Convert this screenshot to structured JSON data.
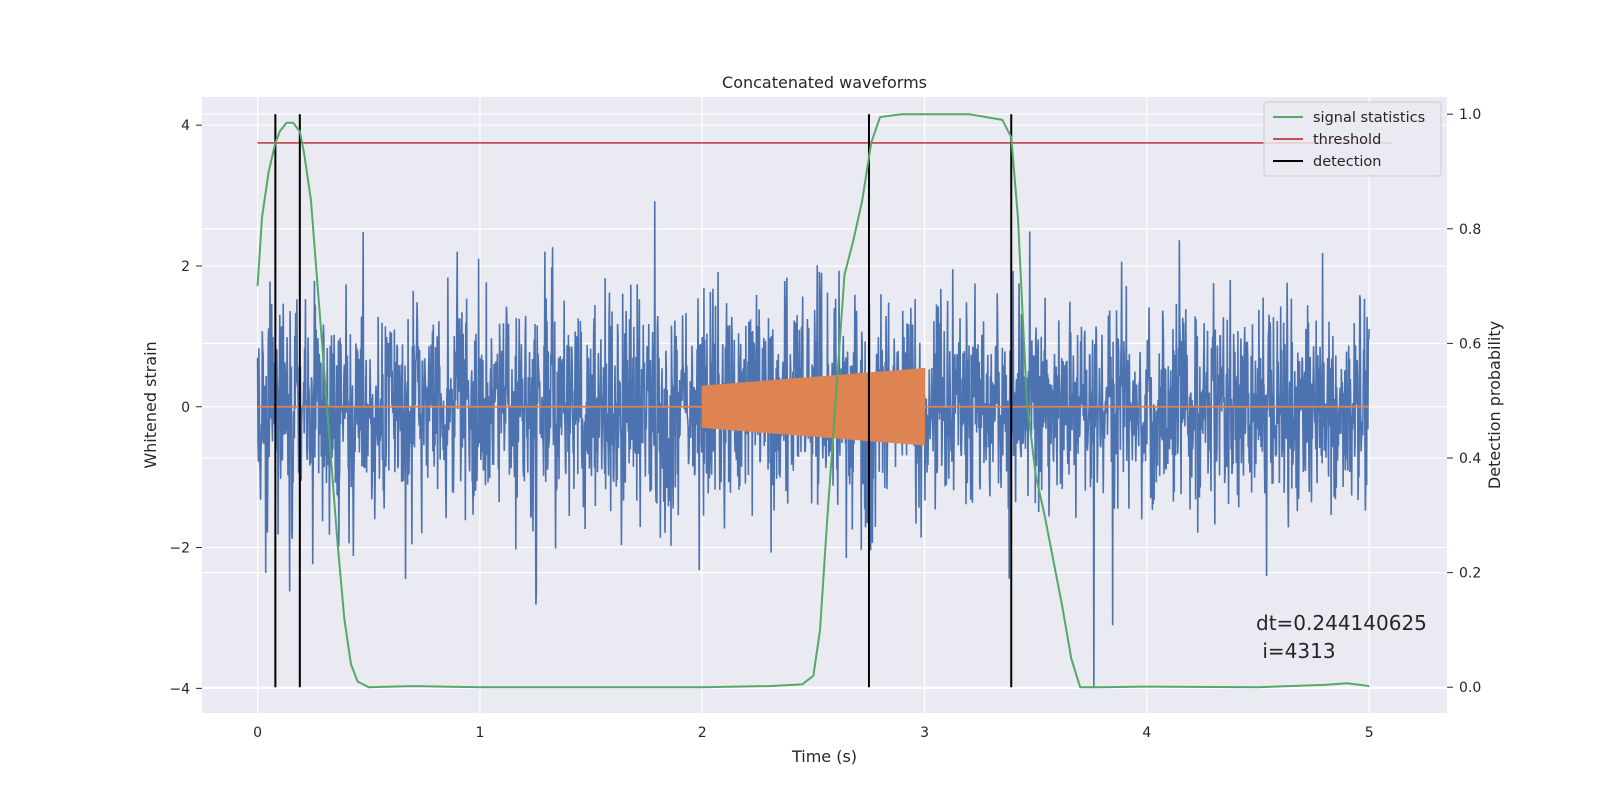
{
  "chart_data": {
    "type": "line",
    "title": "Concatenated waveforms",
    "xlabel": "Time (s)",
    "ylabel": "Whitened strain",
    "y2label": "Detection probability",
    "xlim": [
      -0.25,
      5.35
    ],
    "ylim": [
      -4.35,
      4.4
    ],
    "y2lim": [
      -0.045,
      1.03
    ],
    "xticks": [
      0,
      1,
      2,
      3,
      4,
      5
    ],
    "yticks": [
      -4,
      -2,
      0,
      2,
      4
    ],
    "y2ticks": [
      0.0,
      0.2,
      0.4,
      0.6,
      0.8,
      1.0
    ],
    "xtick_labels": [
      "0",
      "1",
      "2",
      "3",
      "4",
      "5"
    ],
    "ytick_labels": [
      "−4",
      "−2",
      "0",
      "2",
      "4"
    ],
    "y2tick_labels": [
      "0.0",
      "0.2",
      "0.4",
      "0.6",
      "0.8",
      "1.0"
    ],
    "grid": true,
    "legend_position": "top-right",
    "series": [
      {
        "name": "",
        "axis": "left",
        "color": "#4c72b0",
        "kind": "noise",
        "x_range": [
          0,
          5
        ],
        "amplitude_std": 0.75,
        "y_range": [
          -4,
          4
        ]
      },
      {
        "name": "",
        "axis": "left",
        "color": "#dd8452",
        "kind": "chirp",
        "x_range": [
          2,
          3
        ],
        "amplitude_start": 0.3,
        "amplitude_end": 0.55,
        "baseline": 0
      },
      {
        "name": "signal statistics",
        "axis": "right",
        "color": "#55a868",
        "x": [
          0,
          0.02,
          0.05,
          0.08,
          0.1,
          0.13,
          0.16,
          0.19,
          0.21,
          0.24,
          0.27,
          0.3,
          0.33,
          0.36,
          0.39,
          0.42,
          0.45,
          0.5,
          0.7,
          1.0,
          1.5,
          2.0,
          2.3,
          2.45,
          2.5,
          2.53,
          2.56,
          2.6,
          2.64,
          2.68,
          2.72,
          2.76,
          2.8,
          2.9,
          3.0,
          3.2,
          3.35,
          3.39,
          3.42,
          3.46,
          3.5,
          3.54,
          3.58,
          3.62,
          3.66,
          3.7,
          3.8,
          4.0,
          4.5,
          4.8,
          4.9,
          5.0
        ],
        "values": [
          0.7,
          0.82,
          0.9,
          0.95,
          0.97,
          0.985,
          0.985,
          0.97,
          0.93,
          0.85,
          0.7,
          0.55,
          0.4,
          0.25,
          0.12,
          0.04,
          0.01,
          0.0,
          0.002,
          0.0,
          0.0,
          0.0,
          0.002,
          0.005,
          0.02,
          0.1,
          0.28,
          0.5,
          0.72,
          0.78,
          0.85,
          0.95,
          0.995,
          1.0,
          1.0,
          1.0,
          0.99,
          0.96,
          0.82,
          0.5,
          0.37,
          0.3,
          0.22,
          0.14,
          0.05,
          0.0,
          0.0,
          0.001,
          0.0,
          0.004,
          0.007,
          0.002
        ]
      },
      {
        "name": "threshold",
        "axis": "right",
        "color": "#c44e52",
        "x": [
          0,
          5.1
        ],
        "values": [
          0.95,
          0.95
        ]
      },
      {
        "name": "detection",
        "axis": "right",
        "color": "#000000",
        "kind": "vlines",
        "x": [
          0.08,
          0.19,
          2.75,
          3.39
        ],
        "range": [
          0,
          1
        ]
      }
    ],
    "annotation": {
      "line1": "dt=0.244140625",
      "line2": " i=4313",
      "x": 4.5,
      "y": -3.9
    },
    "colors": {
      "face": "#eaeaf2",
      "grid": "#ffffff",
      "text": "#262626",
      "figure_bg": "#ffffff"
    }
  }
}
